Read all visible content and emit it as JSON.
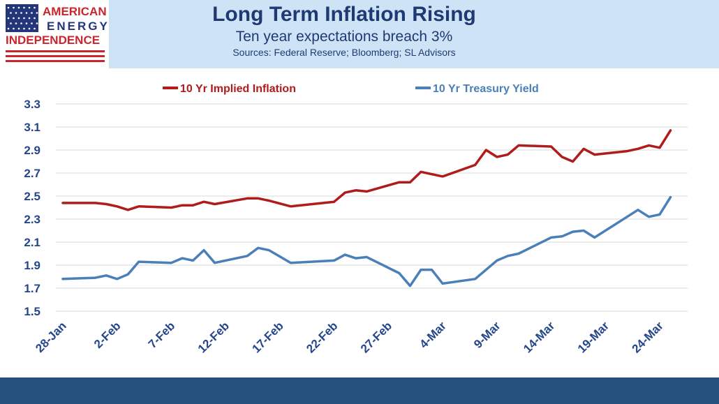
{
  "header": {
    "title": "Long Term Inflation Rising",
    "subtitle": "Ten year expectations breach 3%",
    "sources": "Sources: Federal Reserve; Bloomberg; SL Advisors"
  },
  "logo": {
    "line1": "AMERICAN",
    "line2": "ENERGY",
    "line3": "INDEPENDENCE",
    "colors": {
      "red": "#c8262c",
      "blue": "#24367a"
    }
  },
  "colors": {
    "inflation": "#b01c1c",
    "treasury": "#4a7fb8",
    "axis_text": "#24468a",
    "grid": "#d9d9d9",
    "header_bg": "#cfe3f6",
    "footer_bg": "#25507e"
  },
  "chart_data": {
    "type": "line",
    "xlabel": "",
    "ylabel": "",
    "ylim": [
      1.5,
      3.3
    ],
    "yticks": [
      "1.5",
      "1.7",
      "1.9",
      "2.1",
      "2.3",
      "2.5",
      "2.7",
      "2.9",
      "3.1",
      "3.3"
    ],
    "xticks": [
      "28-Jan",
      "2-Feb",
      "7-Feb",
      "12-Feb",
      "17-Feb",
      "22-Feb",
      "27-Feb",
      "4-Mar",
      "9-Mar",
      "14-Mar",
      "19-Mar",
      "24-Mar"
    ],
    "grid": "horizontal",
    "legend": "top",
    "series": [
      {
        "name": "10 Yr Implied Inflation",
        "color": "#b01c1c",
        "points": [
          [
            "28-Jan",
            2.44
          ],
          [
            "31-Jan",
            2.44
          ],
          [
            "1-Feb",
            2.43
          ],
          [
            "2-Feb",
            2.41
          ],
          [
            "3-Feb",
            2.38
          ],
          [
            "4-Feb",
            2.41
          ],
          [
            "7-Feb",
            2.4
          ],
          [
            "8-Feb",
            2.42
          ],
          [
            "9-Feb",
            2.42
          ],
          [
            "10-Feb",
            2.45
          ],
          [
            "11-Feb",
            2.43
          ],
          [
            "14-Feb",
            2.48
          ],
          [
            "15-Feb",
            2.48
          ],
          [
            "16-Feb",
            2.46
          ],
          [
            "18-Feb",
            2.41
          ],
          [
            "22-Feb",
            2.45
          ],
          [
            "23-Feb",
            2.53
          ],
          [
            "24-Feb",
            2.55
          ],
          [
            "25-Feb",
            2.54
          ],
          [
            "28-Feb",
            2.62
          ],
          [
            "1-Mar",
            2.62
          ],
          [
            "2-Mar",
            2.71
          ],
          [
            "4-Mar",
            2.67
          ],
          [
            "7-Mar",
            2.77
          ],
          [
            "8-Mar",
            2.9
          ],
          [
            "9-Mar",
            2.84
          ],
          [
            "10-Mar",
            2.86
          ],
          [
            "11-Mar",
            2.94
          ],
          [
            "14-Mar",
            2.93
          ],
          [
            "15-Mar",
            2.84
          ],
          [
            "16-Mar",
            2.8
          ],
          [
            "17-Mar",
            2.91
          ],
          [
            "18-Mar",
            2.86
          ],
          [
            "21-Mar",
            2.89
          ],
          [
            "22-Mar",
            2.91
          ],
          [
            "23-Mar",
            2.94
          ],
          [
            "24-Mar",
            2.92
          ],
          [
            "25-Mar",
            3.07
          ]
        ]
      },
      {
        "name": "10 Yr Treasury Yield",
        "color": "#4a7fb8",
        "points": [
          [
            "28-Jan",
            1.78
          ],
          [
            "31-Jan",
            1.79
          ],
          [
            "1-Feb",
            1.81
          ],
          [
            "2-Feb",
            1.78
          ],
          [
            "3-Feb",
            1.82
          ],
          [
            "4-Feb",
            1.93
          ],
          [
            "7-Feb",
            1.92
          ],
          [
            "8-Feb",
            1.96
          ],
          [
            "9-Feb",
            1.94
          ],
          [
            "10-Feb",
            2.03
          ],
          [
            "11-Feb",
            1.92
          ],
          [
            "14-Feb",
            1.98
          ],
          [
            "15-Feb",
            2.05
          ],
          [
            "16-Feb",
            2.03
          ],
          [
            "18-Feb",
            1.92
          ],
          [
            "22-Feb",
            1.94
          ],
          [
            "23-Feb",
            1.99
          ],
          [
            "24-Feb",
            1.96
          ],
          [
            "25-Feb",
            1.97
          ],
          [
            "28-Feb",
            1.83
          ],
          [
            "1-Mar",
            1.72
          ],
          [
            "2-Mar",
            1.86
          ],
          [
            "3-Mar",
            1.86
          ],
          [
            "4-Mar",
            1.74
          ],
          [
            "7-Mar",
            1.78
          ],
          [
            "8-Mar",
            1.86
          ],
          [
            "9-Mar",
            1.94
          ],
          [
            "10-Mar",
            1.98
          ],
          [
            "11-Mar",
            2.0
          ],
          [
            "14-Mar",
            2.14
          ],
          [
            "15-Mar",
            2.15
          ],
          [
            "16-Mar",
            2.19
          ],
          [
            "17-Mar",
            2.2
          ],
          [
            "18-Mar",
            2.14
          ],
          [
            "22-Mar",
            2.38
          ],
          [
            "23-Mar",
            2.32
          ],
          [
            "24-Mar",
            2.34
          ],
          [
            "25-Mar",
            2.49
          ]
        ]
      }
    ]
  }
}
